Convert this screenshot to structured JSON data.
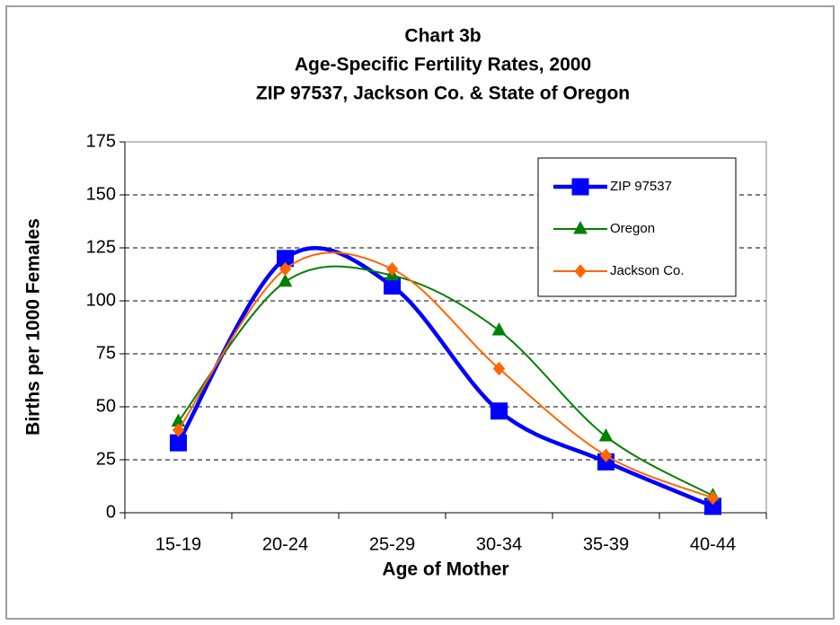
{
  "chart_data": {
    "type": "line",
    "title": [
      "Chart 3b",
      "Age-Specific Fertility Rates, 2000",
      "ZIP 97537, Jackson Co. & State of Oregon"
    ],
    "x_label": "Age of Mother",
    "y_label": "Births per 1000 Females",
    "categories": [
      "15-19",
      "20-24",
      "25-29",
      "30-34",
      "35-39",
      "40-44"
    ],
    "series": [
      {
        "name": "ZIP 97537",
        "color": "#0000ff",
        "marker": "square",
        "line_width": 4.5,
        "values": [
          33,
          120,
          107,
          48,
          24,
          3
        ]
      },
      {
        "name": "Oregon",
        "color": "#008000",
        "marker": "triangle",
        "line_width": 2,
        "values": [
          43,
          109,
          112,
          86,
          36,
          8
        ]
      },
      {
        "name": "Jackson Co.",
        "color": "#ff6600",
        "marker": "diamond",
        "line_width": 2,
        "values": [
          39,
          115,
          115,
          68,
          27,
          7
        ]
      }
    ],
    "ylim": [
      0,
      175
    ],
    "yticks": [
      0,
      25,
      50,
      75,
      100,
      125,
      150,
      175
    ],
    "grid": true,
    "smooth": true,
    "legend": "upper right"
  }
}
